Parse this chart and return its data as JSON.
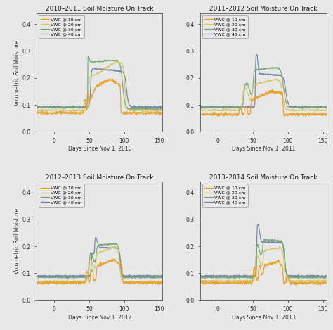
{
  "titles": [
    "2010–2011 Soil Moisture On Track",
    "2011–2012 Soil Moisture On Track",
    "2012–2013 Soil Moisture On Track",
    "2013–2014 Soil Moisture On Track"
  ],
  "xlabels": [
    "Days Since Nov 1  2010",
    "Days Since Nov 1  2011",
    "Days Since Nov 1  2012",
    "Days Since Nov 1  2013"
  ],
  "ylabel": "Volumetric Soil Moisture",
  "legend_labels": [
    "VWC @ 10 cm",
    "VWC @ 20 cm",
    "VWC @ 30 cm",
    "VWC @ 40 cm"
  ],
  "colors": [
    "#e8a020",
    "#d4c860",
    "#70a870",
    "#7080a0"
  ],
  "xlim": [
    -25,
    155
  ],
  "ylim": [
    0.0,
    0.44
  ],
  "yticks": [
    0.0,
    0.1,
    0.2,
    0.3,
    0.4
  ],
  "xticks": [
    0,
    50,
    100,
    150
  ],
  "bg_color": "#e8e8e8",
  "title_fontsize": 6.5,
  "label_fontsize": 5.5,
  "tick_fontsize": 5.5,
  "legend_fontsize": 4.5,
  "linewidth": 0.9
}
